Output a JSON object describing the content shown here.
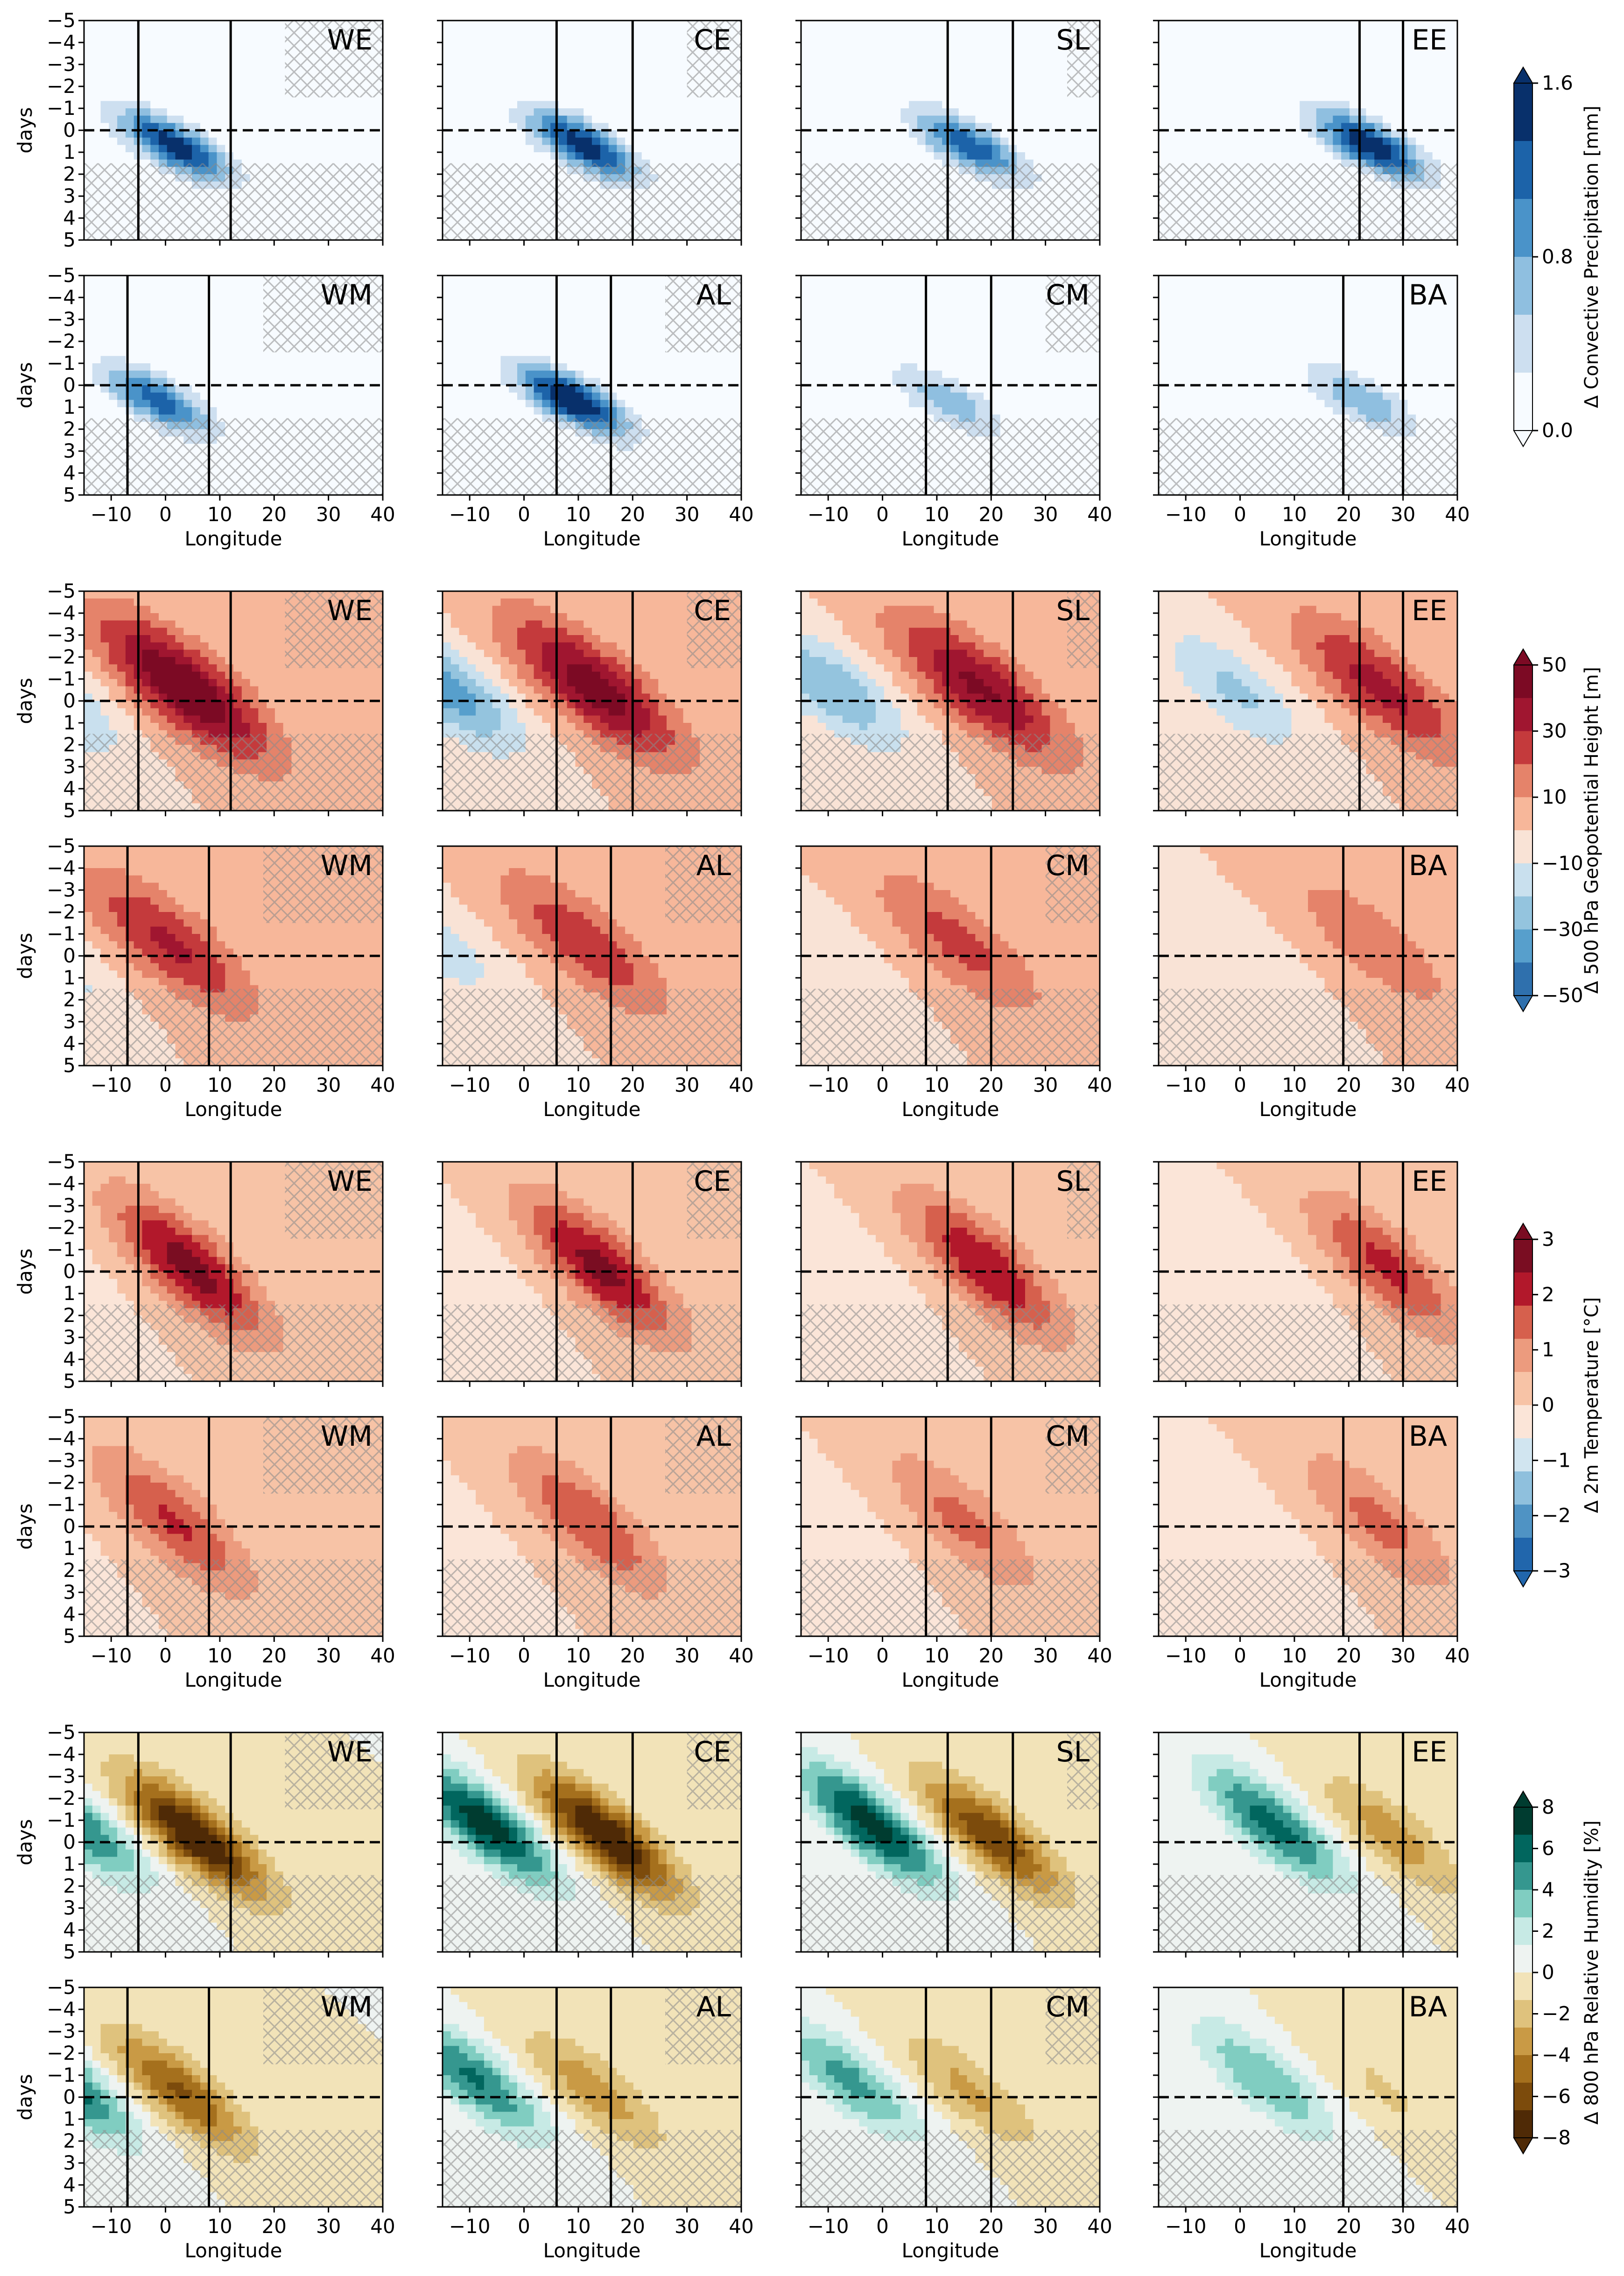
{
  "chart_data": {
    "type": "heatmap",
    "figure": "Hovmöller composites of anomalies (longitude vs. lag days) for 8 regions and 4 variables",
    "shared_axes": {
      "xlabel": "Longitude",
      "ylabel": "days",
      "xlim": [
        -15,
        40
      ],
      "ylim": [
        -5,
        5
      ],
      "y_inverted": true,
      "xticks": [
        "−10",
        "0",
        "10",
        "20",
        "30",
        "40"
      ],
      "xtick_values": [
        -10,
        0,
        10,
        20,
        30,
        40
      ],
      "yticks": [
        "−5",
        "−4",
        "−3",
        "−2",
        "−1",
        "0",
        "1",
        "2",
        "3",
        "4",
        "5"
      ],
      "ytick_values": [
        -5,
        -4,
        -3,
        -2,
        -1,
        0,
        1,
        2,
        3,
        4,
        5
      ],
      "dashed_zero_line": true,
      "hatching": "non-significant areas"
    },
    "regions": [
      {
        "label": "WE",
        "bounds": [
          -5,
          12
        ]
      },
      {
        "label": "CE",
        "bounds": [
          6,
          20
        ]
      },
      {
        "label": "SL",
        "bounds": [
          12,
          24
        ]
      },
      {
        "label": "EE",
        "bounds": [
          22,
          30
        ]
      },
      {
        "label": "WM",
        "bounds": [
          -7,
          8
        ]
      },
      {
        "label": "AL",
        "bounds": [
          6,
          16
        ]
      },
      {
        "label": "CM",
        "bounds": [
          8,
          20
        ]
      },
      {
        "label": "BA",
        "bounds": [
          19,
          30
        ]
      }
    ],
    "variables": [
      {
        "name": "precip",
        "colorbar_label": "Δ Convective Precipitation [mm]",
        "cmap": "Blues",
        "ticks": [
          "0.0",
          "0.8",
          "1.6"
        ],
        "tick_values": [
          0.0,
          0.8,
          1.6
        ],
        "range": [
          0,
          1.6
        ],
        "extend": "both",
        "sign": "positive",
        "colors": [
          "#f7fbff",
          "#cddff0",
          "#8fbfe0",
          "#4a93c9",
          "#1c63a9",
          "#08306b"
        ]
      },
      {
        "name": "z500",
        "colorbar_label": "Δ 500 hPa Geopotential Height [m]",
        "cmap": "RdBu_r",
        "ticks": [
          "50",
          "30",
          "10",
          "−10",
          "−30",
          "−50"
        ],
        "tick_values": [
          50,
          30,
          10,
          -10,
          -30,
          -50
        ],
        "range": [
          -50,
          50
        ],
        "extend": "both",
        "sign": "diverging",
        "colors": [
          "#2f70ad",
          "#579fcc",
          "#94c4de",
          "#c9e0ee",
          "#f9e3d6",
          "#f7b79a",
          "#e5836a",
          "#c43a3c",
          "#a01630",
          "#7c0a24"
        ]
      },
      {
        "name": "t2m",
        "colorbar_label": "Δ 2m Temperature [°C]",
        "cmap": "RdBu_r",
        "ticks": [
          "3",
          "2",
          "1",
          "0",
          "−1",
          "−2",
          "−3"
        ],
        "tick_values": [
          3,
          2,
          1,
          0,
          -1,
          -2,
          -3
        ],
        "range": [
          -3,
          3
        ],
        "extend": "both",
        "sign": "diverging",
        "colors": [
          "#2166ac",
          "#4f93c4",
          "#8fc0dd",
          "#d1e5f0",
          "#fbe5d8",
          "#f7c3a6",
          "#ec9b7e",
          "#d6604d",
          "#b2182b",
          "#7a0d22"
        ]
      },
      {
        "name": "rh800",
        "colorbar_label": "Δ 800 hPa Relative Humidity [%]",
        "cmap": "BrBG",
        "ticks": [
          "8",
          "6",
          "4",
          "2",
          "0",
          "−2",
          "−4",
          "−6",
          "−8"
        ],
        "tick_values": [
          8,
          6,
          4,
          2,
          0,
          -2,
          -4,
          -6,
          -8
        ],
        "range": [
          -8,
          8
        ],
        "extend": "both",
        "sign": "diverging",
        "colors": [
          "#4f2a06",
          "#7c4b0c",
          "#a5701d",
          "#c99a45",
          "#dfc27d",
          "#f2e3b8",
          "#eef3f1",
          "#c7eae5",
          "#80cdc1",
          "#35978f",
          "#01665e",
          "#003c30"
        ]
      }
    ]
  }
}
